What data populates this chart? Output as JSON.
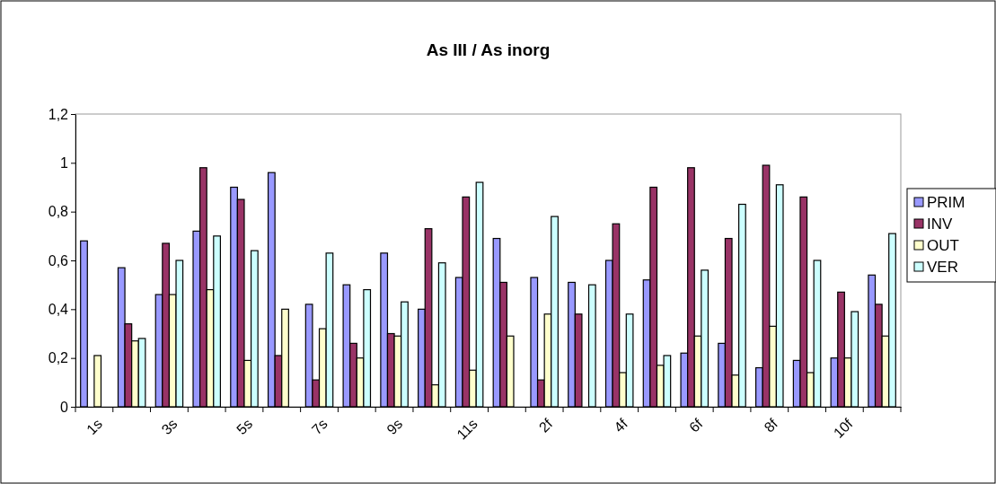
{
  "chart_data": {
    "type": "bar",
    "title": "As III / As inorg",
    "categories": [
      "1s",
      null,
      "3s",
      null,
      "5s",
      null,
      "7s",
      null,
      "9s",
      null,
      "11s",
      null,
      "2f",
      null,
      "4f",
      null,
      "6f",
      null,
      "8f",
      null,
      "10f",
      null
    ],
    "series": [
      {
        "name": "PRIM",
        "color": "#9999ff",
        "values": [
          0.68,
          0.57,
          0.46,
          0.72,
          0.9,
          0.96,
          0.42,
          0.5,
          0.63,
          0.4,
          0.53,
          0.69,
          0.53,
          0.51,
          0.6,
          0.52,
          0.22,
          0.26,
          0.16,
          0.19,
          0.2,
          0.54
        ]
      },
      {
        "name": "INV",
        "color": "#993366",
        "values": [
          null,
          0.34,
          0.67,
          0.98,
          0.85,
          0.21,
          0.11,
          0.26,
          0.3,
          0.73,
          0.86,
          0.51,
          0.11,
          0.38,
          0.75,
          0.9,
          0.98,
          0.69,
          0.99,
          0.86,
          0.47,
          0.42
        ]
      },
      {
        "name": "OUT",
        "color": "#ffffcc",
        "values": [
          0.21,
          0.27,
          0.46,
          0.48,
          0.19,
          0.4,
          0.32,
          0.2,
          0.29,
          0.09,
          0.15,
          0.29,
          0.38,
          null,
          0.14,
          0.17,
          0.29,
          0.13,
          0.33,
          0.14,
          0.2,
          0.29
        ]
      },
      {
        "name": "VER",
        "color": "#ccffff",
        "values": [
          null,
          0.28,
          0.6,
          0.7,
          0.64,
          null,
          0.63,
          0.48,
          0.43,
          0.59,
          0.92,
          null,
          0.78,
          0.5,
          0.38,
          0.21,
          0.56,
          0.83,
          0.91,
          0.6,
          0.39,
          0.71
        ]
      }
    ],
    "ylim": [
      0,
      1.2
    ],
    "yticks": [
      0,
      {
        "value": 0.2,
        "label": "0,2"
      },
      {
        "value": 0.4,
        "label": "0,4"
      },
      {
        "value": 0.6,
        "label": "0,6"
      },
      {
        "value": 0.8,
        "label": "0,8"
      },
      1,
      {
        "value": 1.2,
        "label": "1,2"
      }
    ],
    "grid": false,
    "legend": "right"
  }
}
